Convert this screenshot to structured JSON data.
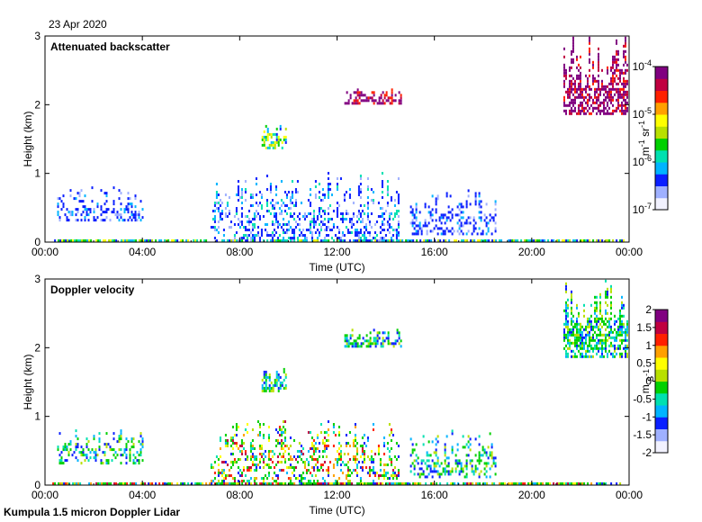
{
  "date": "23 Apr 2020",
  "footer": "Kumpula 1.5 micron Doppler Lidar",
  "chart_data": [
    {
      "type": "heatmap",
      "title": "Attenuated backscatter",
      "xlabel": "Time (UTC)",
      "ylabel": "Height (km)",
      "x_ticks": [
        "00:00",
        "04:00",
        "08:00",
        "12:00",
        "16:00",
        "20:00",
        "00:00"
      ],
      "y_ticks": [
        "0",
        "1",
        "2",
        "3"
      ],
      "ylim": [
        0,
        3
      ],
      "xlim_hours": [
        0,
        24
      ],
      "colorbar": {
        "scale": "log",
        "min": 1e-07,
        "max": 0.0001,
        "ticks": [
          {
            "base": "10",
            "exp": "-7",
            "value": 1e-07
          },
          {
            "base": "10",
            "exp": "-6",
            "value": 1e-06
          },
          {
            "base": "10",
            "exp": "-5",
            "value": 1e-05
          },
          {
            "base": "10",
            "exp": "-4",
            "value": 0.0001
          }
        ],
        "unit_parts": [
          "m",
          "-1",
          " sr",
          "-1"
        ],
        "colors": [
          "#f2f2ff",
          "#9fb0ff",
          "#0a1fff",
          "#00b4ff",
          "#00e0b0",
          "#00d000",
          "#b8e000",
          "#ffff00",
          "#ffa000",
          "#ff2000",
          "#c00040",
          "#800080"
        ]
      },
      "regions": [
        {
          "name": "boundary-layer",
          "t_start": 0.3,
          "t_end": 23.8,
          "h_bottom": 0.0,
          "h_top": 0.06,
          "level": "medium"
        },
        {
          "name": "morning-aerosol",
          "t_start": 0.5,
          "t_end": 4.0,
          "h_bottom": 0.3,
          "h_top": 0.85,
          "level": "low"
        },
        {
          "name": "daytime-plumes",
          "t_start": 6.8,
          "t_end": 14.5,
          "h_bottom": 0.0,
          "h_top": 1.05,
          "level": "low-medium"
        },
        {
          "name": "afternoon-aerosol",
          "t_start": 15.0,
          "t_end": 18.5,
          "h_bottom": 0.1,
          "h_top": 0.85,
          "level": "low"
        },
        {
          "name": "cloud-layer-1",
          "t_start": 8.9,
          "t_end": 9.9,
          "h_bottom": 1.35,
          "h_top": 1.75,
          "level": "medium"
        },
        {
          "name": "cloud-layer-2",
          "t_start": 12.3,
          "t_end": 14.6,
          "h_bottom": 2.0,
          "h_top": 2.3,
          "level": "high"
        },
        {
          "name": "cloud-layer-3",
          "t_start": 21.3,
          "t_end": 23.9,
          "h_bottom": 1.85,
          "h_top": 3.0,
          "level": "high"
        }
      ]
    },
    {
      "type": "heatmap",
      "title": "Doppler velocity",
      "xlabel": "Time (UTC)",
      "ylabel": "Height (km)",
      "x_ticks": [
        "00:00",
        "04:00",
        "08:00",
        "12:00",
        "16:00",
        "20:00",
        "00:00"
      ],
      "y_ticks": [
        "0",
        "1",
        "2",
        "3"
      ],
      "ylim": [
        0,
        3
      ],
      "xlim_hours": [
        0,
        24
      ],
      "colorbar": {
        "scale": "linear",
        "min": -2,
        "max": 2,
        "ticks": [
          "-2",
          "-1.5",
          "-1",
          "-0.5",
          "0",
          "0.5",
          "1",
          "1.5",
          "2"
        ],
        "unit_parts": [
          "m",
          " s",
          "-1"
        ],
        "colors": [
          "#f2f2ff",
          "#9fb0ff",
          "#0a1fff",
          "#00b4ff",
          "#00e0b0",
          "#00d000",
          "#b8e000",
          "#ffff00",
          "#ffa000",
          "#ff2000",
          "#c00040",
          "#800080"
        ]
      },
      "regions": [
        {
          "name": "boundary-layer",
          "t_start": 0.3,
          "t_end": 23.8,
          "h_bottom": 0.0,
          "h_top": 0.06,
          "level": "mixed"
        },
        {
          "name": "morning-aerosol",
          "t_start": 0.5,
          "t_end": 4.0,
          "h_bottom": 0.3,
          "h_top": 0.85,
          "level": "near-zero"
        },
        {
          "name": "daytime-convection",
          "t_start": 6.8,
          "t_end": 14.5,
          "h_bottom": 0.0,
          "h_top": 1.05,
          "level": "mixed"
        },
        {
          "name": "afternoon-aerosol",
          "t_start": 15.0,
          "t_end": 18.5,
          "h_bottom": 0.1,
          "h_top": 0.85,
          "level": "near-zero"
        },
        {
          "name": "cloud-layer-1",
          "t_start": 8.9,
          "t_end": 9.9,
          "h_bottom": 1.35,
          "h_top": 1.75,
          "level": "near-zero"
        },
        {
          "name": "cloud-layer-2",
          "t_start": 12.3,
          "t_end": 14.6,
          "h_bottom": 2.0,
          "h_top": 2.3,
          "level": "near-zero"
        },
        {
          "name": "cloud-layer-3",
          "t_start": 21.3,
          "t_end": 23.9,
          "h_bottom": 1.85,
          "h_top": 3.0,
          "level": "near-zero"
        }
      ]
    }
  ]
}
